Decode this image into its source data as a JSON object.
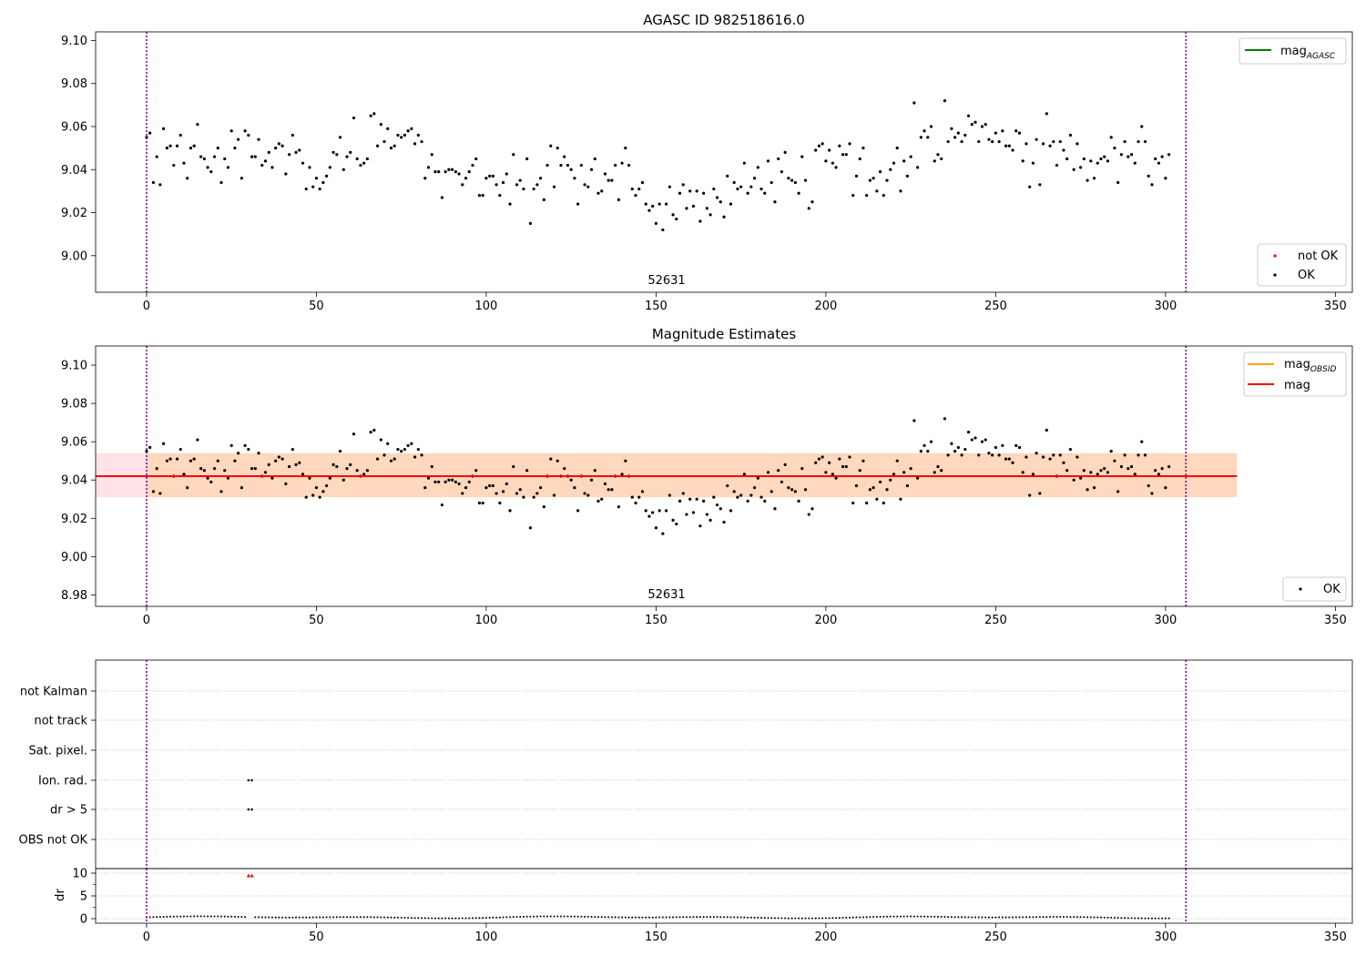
{
  "chart_data": [
    {
      "type": "scatter",
      "title": "AGASC ID 982518616.0",
      "obsid_label": "52631",
      "xlim": [
        -15,
        355
      ],
      "ylim": [
        8.983,
        9.104
      ],
      "xticks": [
        0,
        50,
        100,
        150,
        200,
        250,
        300,
        350
      ],
      "yticks": [
        9.0,
        9.02,
        9.04,
        9.06,
        9.08,
        9.1
      ],
      "vlines_x": [
        0,
        306
      ],
      "legend_top": [
        {
          "label": "mag",
          "subscript": "AGASC",
          "color": "#008000",
          "kind": "line"
        }
      ],
      "legend_bottom": [
        {
          "label": "not OK",
          "color": "#ff0000",
          "kind": "point"
        },
        {
          "label": "OK",
          "color": "#000000",
          "kind": "point"
        }
      ],
      "series": [
        {
          "name": "OK",
          "color": "#000000",
          "values_ref": "shared.magnitudes"
        }
      ]
    },
    {
      "type": "scatter",
      "title": "Magnitude Estimates",
      "obsid_label": "52631",
      "xlim": [
        -15,
        355
      ],
      "ylim": [
        8.974,
        9.11
      ],
      "xticks": [
        0,
        50,
        100,
        150,
        200,
        250,
        300,
        350
      ],
      "yticks": [
        8.98,
        9.0,
        9.02,
        9.04,
        9.06,
        9.08,
        9.1
      ],
      "vlines_x": [
        0,
        306
      ],
      "mag_line": 9.042,
      "band_low": 9.031,
      "band_high": 9.054,
      "band_x": [
        -15,
        321
      ],
      "band_obsid_x": [
        0,
        321
      ],
      "legend_top": [
        {
          "label": "mag",
          "subscript": "OBSID",
          "color": "#ffa500",
          "kind": "line"
        },
        {
          "label": "mag",
          "subscript": "",
          "color": "#ff0000",
          "kind": "line"
        }
      ],
      "legend_bottom": [
        {
          "label": "OK",
          "color": "#000000",
          "kind": "point"
        }
      ],
      "series": [
        {
          "name": "OK",
          "color": "#000000",
          "values_ref": "shared.magnitudes"
        }
      ]
    },
    {
      "type": "scatter",
      "title": "",
      "xlim": [
        -15,
        355
      ],
      "vlines_x": [
        0,
        306
      ],
      "categories": [
        "not Kalman",
        "not track",
        "Sat. pixel.",
        "Ion. rad.",
        "dr > 5",
        "OBS not OK"
      ],
      "flag_points": {
        "Ion. rad.": [
          30,
          31
        ],
        "dr > 5": [
          30,
          31
        ]
      }
    },
    {
      "type": "scatter",
      "title": "",
      "ylabel": "dr",
      "xlim": [
        -15,
        355
      ],
      "ylim": [
        -1,
        11
      ],
      "xticks": [
        0,
        50,
        100,
        150,
        200,
        250,
        300,
        350
      ],
      "yticks": [
        0,
        5,
        10
      ],
      "vlines_x": [
        0,
        306
      ],
      "outliers": [
        {
          "x": 30,
          "dr": 9.5
        },
        {
          "x": 31,
          "dr": 9.5
        }
      ],
      "outlier_color": "#ff0000",
      "series": [
        {
          "name": "dr",
          "color": "#000000",
          "baseline": 0.3,
          "amplitude": 0.25
        }
      ]
    }
  ],
  "shared": {
    "magnitudes": [
      9.055,
      9.057,
      9.034,
      9.046,
      9.033,
      9.059,
      9.05,
      9.051,
      9.042,
      9.051,
      9.056,
      9.043,
      9.036,
      9.05,
      9.051,
      9.061,
      9.046,
      9.045,
      9.041,
      9.039,
      9.046,
      9.05,
      9.034,
      9.045,
      9.041,
      9.058,
      9.05,
      9.054,
      9.036,
      9.058,
      9.056,
      9.046,
      9.046,
      9.054,
      9.042,
      9.044,
      9.048,
      9.041,
      9.05,
      9.052,
      9.051,
      9.038,
      9.047,
      9.056,
      9.048,
      9.049,
      9.043,
      9.031,
      9.041,
      9.032,
      9.036,
      9.031,
      9.034,
      9.037,
      9.041,
      9.048,
      9.047,
      9.055,
      9.04,
      9.046,
      9.048,
      9.064,
      9.045,
      9.042,
      9.043,
      9.045,
      9.065,
      9.066,
      9.051,
      9.061,
      9.053,
      9.059,
      9.05,
      9.051,
      9.056,
      9.055,
      9.056,
      9.058,
      9.059,
      9.052,
      9.056,
      9.053,
      9.036,
      9.041,
      9.047,
      9.039,
      9.039,
      9.027,
      9.039,
      9.04,
      9.04,
      9.039,
      9.038,
      9.033,
      9.036,
      9.039,
      9.042,
      9.045,
      9.028,
      9.028,
      9.036,
      9.037,
      9.037,
      9.033,
      9.028,
      9.034,
      9.038,
      9.024,
      9.047,
      9.033,
      9.035,
      9.031,
      9.045,
      9.015,
      9.031,
      9.033,
      9.036,
      9.026,
      9.042,
      9.051,
      9.032,
      9.05,
      9.042,
      9.046,
      9.042,
      9.04,
      9.036,
      9.024,
      9.042,
      9.033,
      9.032,
      9.04,
      9.045,
      9.029,
      9.03,
      9.038,
      9.035,
      9.035,
      9.042,
      9.026,
      9.043,
      9.05,
      9.042,
      9.031,
      9.028,
      9.031,
      9.034,
      9.024,
      9.021,
      9.023,
      9.015,
      9.024,
      9.012,
      9.024,
      9.032,
      9.019,
      9.017,
      9.029,
      9.033,
      9.022,
      9.03,
      9.023,
      9.03,
      9.016,
      9.029,
      9.022,
      9.019,
      9.031,
      9.027,
      9.025,
      9.018,
      9.037,
      9.024,
      9.034,
      9.031,
      9.032,
      9.043,
      9.029,
      9.032,
      9.036,
      9.041,
      9.031,
      9.029,
      9.044,
      9.034,
      9.025,
      9.045,
      9.039,
      9.048,
      9.036,
      9.035,
      9.034,
      9.029,
      9.046,
      9.035,
      9.022,
      9.025,
      9.049,
      9.051,
      9.052,
      9.044,
      9.049,
      9.043,
      9.041,
      9.051,
      9.047,
      9.047,
      9.052,
      9.028,
      9.037,
      9.045,
      9.05,
      9.028,
      9.035,
      9.036,
      9.03,
      9.039,
      9.028,
      9.035,
      9.04,
      9.043,
      9.05,
      9.03,
      9.044,
      9.037,
      9.046,
      9.071,
      9.041,
      9.055,
      9.058,
      9.055,
      9.06,
      9.044,
      9.047,
      9.045,
      9.072,
      9.053,
      9.059,
      9.055,
      9.057,
      9.053,
      9.056,
      9.065,
      9.061,
      9.062,
      9.053,
      9.06,
      9.061,
      9.054,
      9.053,
      9.057,
      9.053,
      9.058,
      9.051,
      9.051,
      9.049,
      9.058,
      9.057,
      9.044,
      9.052,
      9.032,
      9.043,
      9.054,
      9.033,
      9.052,
      9.066,
      9.051,
      9.053,
      9.042,
      9.053,
      9.049,
      9.045,
      9.056,
      9.04,
      9.052,
      9.041,
      9.045,
      9.035,
      9.044,
      9.036,
      9.043,
      9.045,
      9.046,
      9.044,
      9.055,
      9.05,
      9.034,
      9.047,
      9.053,
      9.046,
      9.047,
      9.043,
      9.053,
      9.06,
      9.053,
      9.037,
      9.033,
      9.045,
      9.043,
      9.046,
      9.036,
      9.047
    ]
  }
}
